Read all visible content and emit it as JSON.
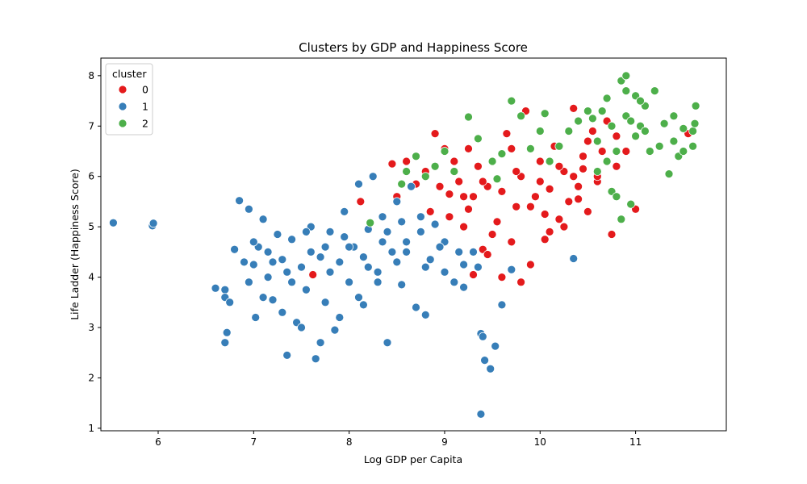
{
  "chart_data": {
    "type": "scatter",
    "title": "Clusters by GDP and Happiness Score",
    "xlabel": "Log GDP per Capita",
    "ylabel": "Life Ladder (Happiness Score)",
    "xlim": [
      5.4,
      11.95
    ],
    "ylim": [
      0.95,
      8.35
    ],
    "xticks": [
      6,
      7,
      8,
      9,
      10,
      11
    ],
    "yticks": [
      1,
      2,
      3,
      4,
      5,
      6,
      7,
      8
    ],
    "grid": false,
    "legend": {
      "title": "cluster",
      "placement": "top-left",
      "entries": [
        "0",
        "1",
        "2"
      ]
    },
    "series": [
      {
        "name": "0",
        "color": "#e41a1c",
        "points": [
          [
            7.62,
            4.05
          ],
          [
            8.12,
            5.5
          ],
          [
            8.45,
            6.25
          ],
          [
            8.5,
            5.6
          ],
          [
            8.6,
            6.3
          ],
          [
            8.7,
            5.85
          ],
          [
            8.8,
            6.1
          ],
          [
            8.85,
            5.3
          ],
          [
            8.9,
            6.85
          ],
          [
            8.95,
            5.8
          ],
          [
            9.0,
            6.55
          ],
          [
            9.05,
            5.2
          ],
          [
            9.1,
            6.3
          ],
          [
            9.15,
            5.9
          ],
          [
            9.2,
            5.0
          ],
          [
            9.25,
            6.55
          ],
          [
            9.3,
            5.6
          ],
          [
            9.35,
            6.2
          ],
          [
            9.4,
            4.55
          ],
          [
            9.45,
            5.8
          ],
          [
            9.5,
            6.3
          ],
          [
            9.55,
            5.1
          ],
          [
            9.6,
            5.7
          ],
          [
            9.65,
            6.85
          ],
          [
            9.7,
            4.7
          ],
          [
            9.75,
            5.4
          ],
          [
            9.8,
            6.0
          ],
          [
            9.85,
            7.3
          ],
          [
            9.9,
            4.25
          ],
          [
            9.95,
            5.6
          ],
          [
            10.0,
            6.3
          ],
          [
            10.05,
            4.75
          ],
          [
            10.1,
            5.75
          ],
          [
            10.15,
            6.6
          ],
          [
            10.2,
            5.15
          ],
          [
            10.25,
            6.1
          ],
          [
            10.3,
            5.5
          ],
          [
            10.35,
            7.35
          ],
          [
            10.4,
            5.8
          ],
          [
            10.45,
            6.4
          ],
          [
            10.5,
            5.3
          ],
          [
            10.55,
            6.9
          ],
          [
            10.6,
            5.9
          ],
          [
            10.65,
            6.5
          ],
          [
            10.7,
            7.1
          ],
          [
            10.75,
            4.85
          ],
          [
            10.8,
            6.2
          ],
          [
            10.9,
            6.5
          ],
          [
            11.0,
            5.35
          ],
          [
            11.55,
            6.85
          ],
          [
            9.2,
            5.6
          ],
          [
            9.6,
            4.0
          ],
          [
            9.8,
            3.9
          ],
          [
            9.3,
            4.05
          ],
          [
            9.9,
            5.4
          ],
          [
            10.0,
            5.9
          ],
          [
            10.1,
            4.9
          ],
          [
            10.2,
            6.2
          ],
          [
            9.4,
            5.9
          ],
          [
            9.5,
            4.85
          ],
          [
            10.35,
            6.0
          ],
          [
            10.5,
            6.7
          ],
          [
            10.6,
            6.0
          ],
          [
            10.45,
            6.15
          ],
          [
            9.7,
            6.55
          ],
          [
            9.05,
            5.65
          ],
          [
            9.25,
            5.35
          ],
          [
            9.45,
            4.45
          ],
          [
            9.75,
            6.1
          ],
          [
            10.05,
            5.25
          ],
          [
            10.25,
            5.0
          ],
          [
            10.4,
            5.55
          ],
          [
            10.8,
            6.8
          ]
        ]
      },
      {
        "name": "1",
        "color": "#377eb8",
        "points": [
          [
            5.53,
            5.08
          ],
          [
            5.94,
            5.02
          ],
          [
            5.95,
            5.07
          ],
          [
            6.6,
            3.78
          ],
          [
            6.7,
            3.75
          ],
          [
            6.7,
            3.6
          ],
          [
            6.72,
            2.9
          ],
          [
            6.7,
            2.7
          ],
          [
            6.75,
            3.5
          ],
          [
            6.8,
            4.55
          ],
          [
            6.85,
            5.52
          ],
          [
            6.9,
            4.3
          ],
          [
            6.95,
            5.35
          ],
          [
            7.0,
            4.25
          ],
          [
            7.02,
            3.2
          ],
          [
            7.05,
            4.6
          ],
          [
            7.1,
            5.15
          ],
          [
            7.15,
            4.0
          ],
          [
            7.2,
            3.55
          ],
          [
            7.25,
            4.85
          ],
          [
            7.3,
            4.35
          ],
          [
            7.35,
            2.45
          ],
          [
            7.4,
            4.75
          ],
          [
            7.45,
            3.1
          ],
          [
            7.5,
            4.2
          ],
          [
            7.55,
            3.75
          ],
          [
            7.6,
            5.0
          ],
          [
            7.65,
            2.38
          ],
          [
            7.7,
            4.4
          ],
          [
            7.75,
            3.5
          ],
          [
            7.8,
            4.9
          ],
          [
            7.85,
            2.95
          ],
          [
            7.9,
            4.3
          ],
          [
            7.95,
            5.3
          ],
          [
            8.0,
            3.9
          ],
          [
            8.05,
            4.6
          ],
          [
            8.1,
            5.85
          ],
          [
            8.15,
            3.45
          ],
          [
            8.2,
            4.95
          ],
          [
            8.25,
            6.0
          ],
          [
            8.3,
            4.1
          ],
          [
            8.35,
            5.2
          ],
          [
            8.4,
            2.7
          ],
          [
            8.45,
            4.5
          ],
          [
            8.5,
            5.5
          ],
          [
            8.55,
            3.85
          ],
          [
            8.6,
            4.7
          ],
          [
            8.65,
            5.8
          ],
          [
            8.7,
            3.4
          ],
          [
            8.75,
            4.9
          ],
          [
            8.8,
            3.25
          ],
          [
            8.85,
            4.35
          ],
          [
            8.9,
            5.05
          ],
          [
            9.0,
            4.7
          ],
          [
            9.1,
            3.9
          ],
          [
            9.2,
            4.25
          ],
          [
            9.3,
            4.5
          ],
          [
            9.38,
            2.88
          ],
          [
            9.4,
            2.82
          ],
          [
            9.38,
            1.28
          ],
          [
            9.42,
            2.35
          ],
          [
            9.48,
            2.18
          ],
          [
            9.53,
            2.63
          ],
          [
            9.6,
            3.45
          ],
          [
            9.7,
            4.15
          ],
          [
            10.35,
            4.37
          ],
          [
            7.0,
            4.7
          ],
          [
            7.2,
            4.3
          ],
          [
            7.4,
            3.9
          ],
          [
            7.6,
            4.5
          ],
          [
            7.8,
            4.1
          ],
          [
            8.0,
            4.6
          ],
          [
            8.2,
            4.2
          ],
          [
            8.4,
            4.9
          ],
          [
            8.6,
            4.5
          ],
          [
            8.8,
            4.2
          ],
          [
            9.0,
            4.1
          ],
          [
            9.2,
            3.8
          ],
          [
            7.1,
            3.6
          ],
          [
            7.3,
            3.3
          ],
          [
            7.5,
            3.0
          ],
          [
            7.7,
            2.7
          ],
          [
            7.9,
            3.2
          ],
          [
            8.1,
            3.6
          ],
          [
            8.3,
            3.9
          ],
          [
            8.5,
            4.3
          ],
          [
            6.95,
            3.9
          ],
          [
            7.15,
            4.5
          ],
          [
            7.35,
            4.1
          ],
          [
            7.55,
            4.9
          ],
          [
            7.75,
            4.6
          ],
          [
            7.95,
            4.8
          ],
          [
            8.15,
            4.4
          ],
          [
            8.35,
            4.7
          ],
          [
            8.55,
            5.1
          ],
          [
            8.75,
            5.2
          ],
          [
            8.95,
            4.6
          ],
          [
            9.15,
            4.5
          ],
          [
            9.35,
            4.2
          ]
        ]
      },
      {
        "name": "2",
        "color": "#4daf4a",
        "points": [
          [
            8.22,
            5.08
          ],
          [
            8.55,
            5.85
          ],
          [
            8.6,
            6.1
          ],
          [
            8.7,
            6.4
          ],
          [
            8.8,
            6.0
          ],
          [
            8.9,
            6.2
          ],
          [
            9.0,
            6.5
          ],
          [
            9.1,
            6.1
          ],
          [
            9.25,
            7.18
          ],
          [
            9.35,
            6.75
          ],
          [
            9.5,
            6.3
          ],
          [
            9.55,
            5.95
          ],
          [
            9.6,
            6.45
          ],
          [
            9.7,
            7.5
          ],
          [
            9.8,
            7.2
          ],
          [
            9.9,
            6.55
          ],
          [
            10.0,
            6.9
          ],
          [
            10.05,
            7.25
          ],
          [
            10.1,
            6.3
          ],
          [
            10.2,
            6.6
          ],
          [
            10.3,
            6.9
          ],
          [
            10.4,
            7.1
          ],
          [
            10.5,
            7.3
          ],
          [
            10.6,
            6.7
          ],
          [
            10.7,
            7.55
          ],
          [
            10.75,
            5.7
          ],
          [
            10.8,
            6.5
          ],
          [
            10.85,
            7.9
          ],
          [
            10.9,
            8.0
          ],
          [
            10.95,
            5.45
          ],
          [
            11.0,
            7.6
          ],
          [
            11.05,
            7.0
          ],
          [
            11.1,
            7.4
          ],
          [
            11.15,
            6.5
          ],
          [
            11.2,
            7.7
          ],
          [
            11.3,
            7.05
          ],
          [
            11.4,
            6.7
          ],
          [
            11.45,
            6.4
          ],
          [
            11.5,
            6.95
          ],
          [
            11.6,
            6.9
          ],
          [
            11.63,
            7.4
          ],
          [
            11.62,
            7.05
          ],
          [
            11.6,
            6.6
          ],
          [
            11.35,
            6.05
          ],
          [
            10.9,
            7.2
          ],
          [
            10.7,
            6.3
          ],
          [
            10.65,
            7.3
          ],
          [
            10.8,
            5.6
          ],
          [
            10.85,
            5.15
          ],
          [
            10.6,
            6.1
          ],
          [
            10.95,
            7.1
          ],
          [
            11.0,
            6.8
          ],
          [
            11.1,
            6.9
          ],
          [
            11.25,
            6.6
          ],
          [
            11.4,
            7.2
          ],
          [
            11.5,
            6.5
          ],
          [
            10.75,
            7.0
          ],
          [
            10.55,
            7.15
          ],
          [
            10.9,
            7.7
          ],
          [
            11.05,
            7.5
          ]
        ]
      }
    ]
  }
}
